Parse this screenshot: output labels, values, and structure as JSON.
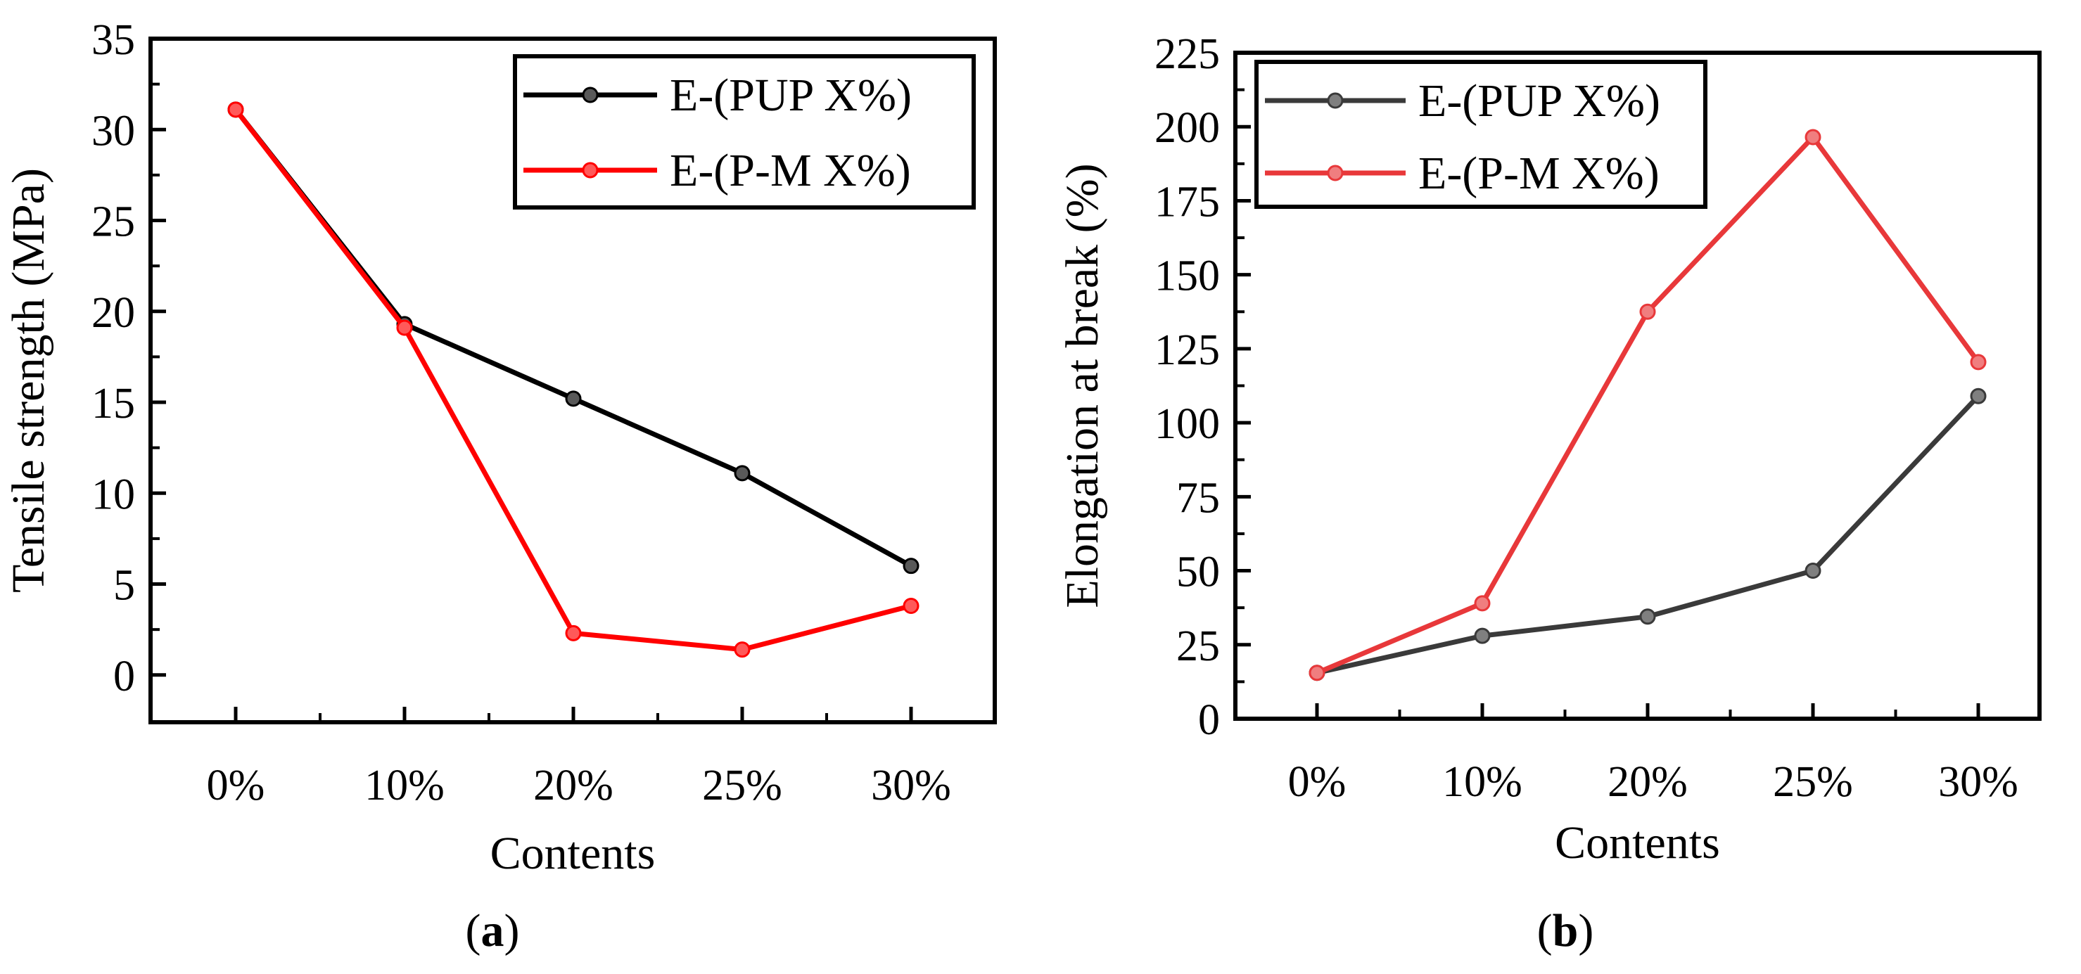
{
  "chart_data": [
    {
      "type": "line",
      "panel_label": "a",
      "categories": [
        "0%",
        "10%",
        "20%",
        "25%",
        "30%"
      ],
      "series": [
        {
          "name": "E-(PUP X%)",
          "color": "#000000",
          "values": [
            31.1,
            19.3,
            15.2,
            11.1,
            6.0
          ]
        },
        {
          "name": "E-(P-M X%)",
          "color": "#ff0000",
          "values": [
            31.1,
            19.1,
            2.3,
            1.4,
            3.8
          ]
        }
      ],
      "title": "",
      "xlabel": "Contents",
      "ylabel": "Tensile strength (MPa)",
      "ylim": [
        -2.6,
        35
      ],
      "yticks": [
        0,
        5,
        10,
        15,
        20,
        25,
        30,
        35
      ],
      "ytick_labels": [
        "0",
        "5",
        "10",
        "15",
        "20",
        "25",
        "30",
        "35"
      ],
      "legend_position": "top-right"
    },
    {
      "type": "line",
      "panel_label": "b",
      "categories": [
        "0%",
        "10%",
        "20%",
        "25%",
        "30%"
      ],
      "series": [
        {
          "name": "E-(PUP X%)",
          "color": "#3a3a3a",
          "values": [
            15.5,
            28,
            34.5,
            50,
            109
          ]
        },
        {
          "name": "E-(P-M X%)",
          "color": "#e8383a",
          "values": [
            15.5,
            39,
            137.5,
            196.5,
            120.5
          ]
        }
      ],
      "title": "",
      "xlabel": "Contents",
      "ylabel": "Elongation at break (%)",
      "ylim": [
        0,
        225
      ],
      "yticks": [
        0,
        25,
        50,
        75,
        100,
        125,
        150,
        175,
        200,
        225
      ],
      "ytick_labels": [
        "0",
        "25",
        "50",
        "75",
        "100",
        "125",
        "150",
        "175",
        "200",
        "225"
      ],
      "legend_position": "top-left"
    }
  ]
}
